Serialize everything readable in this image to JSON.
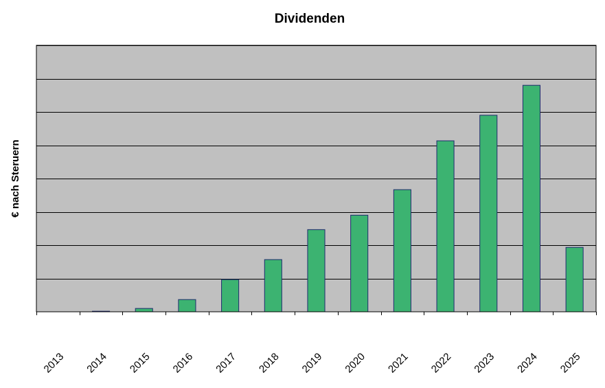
{
  "chart_data": {
    "type": "bar",
    "title": "Dividenden",
    "xlabel": "",
    "ylabel": "€ nach Steruern",
    "categories": [
      "2013",
      "2014",
      "2015",
      "2016",
      "2017",
      "2018",
      "2019",
      "2020",
      "2021",
      "2022",
      "2023",
      "2024",
      "2025"
    ],
    "values": [
      0,
      0.05,
      0.3,
      1.1,
      2.9,
      4.7,
      7.4,
      8.7,
      11.0,
      15.4,
      17.7,
      20.4,
      5.8
    ],
    "ylim": [
      0,
      24
    ],
    "ygrid_step": 3,
    "ytick_labels_shown": false,
    "grid": true,
    "legend": "none",
    "colors": {
      "plot_background": "#c0c0c0",
      "bar_fill": "#3cb371",
      "bar_edge": "#1f2a6e",
      "gridline": "#000000",
      "axis": "#000000"
    }
  }
}
